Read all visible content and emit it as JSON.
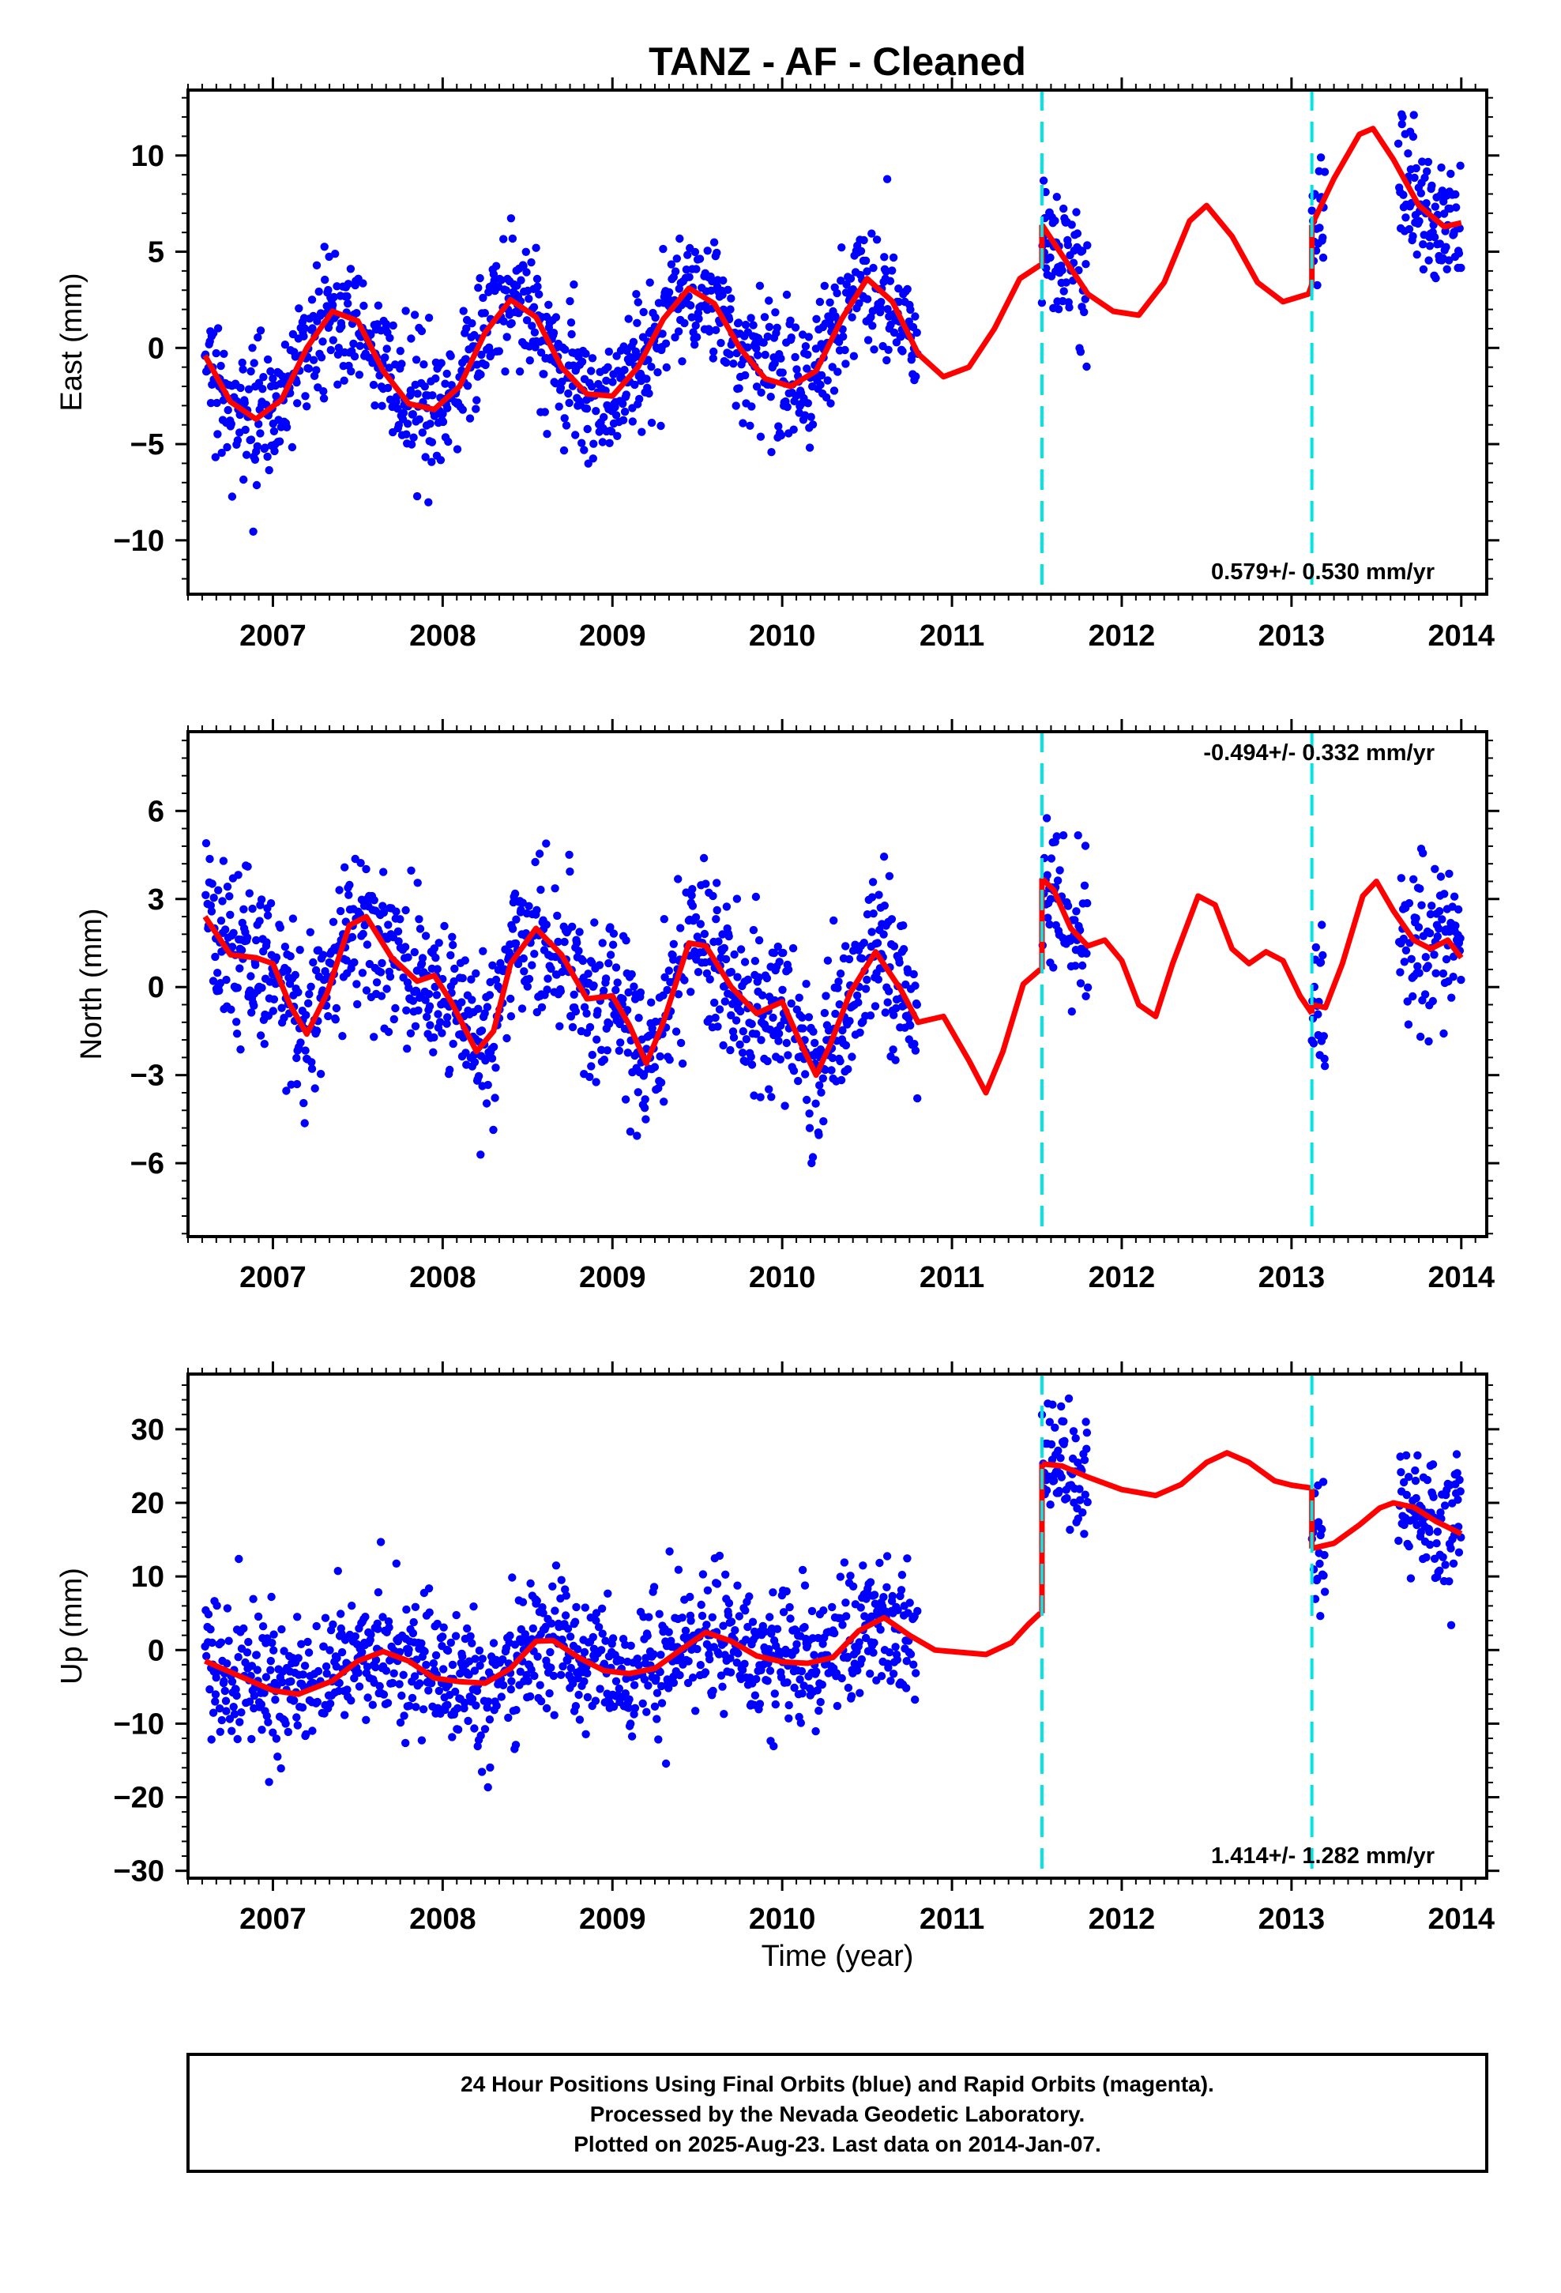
{
  "title": "TANZ  - AF - Cleaned",
  "xlabel": "Time (year)",
  "footer": {
    "line1": "24 Hour Positions Using Final Orbits (blue) and Rapid Orbits (magenta).",
    "line2": "Processed by the Nevada Geodetic Laboratory.",
    "line3": "Plotted on 2025-Aug-23. Last data on 2014-Jan-07."
  },
  "colors": {
    "points": "#0000ff",
    "model": "#ff0000",
    "offsets": "#00e5e5",
    "axes": "#000000"
  },
  "chart_data": [
    {
      "type": "scatter",
      "component": "East",
      "ylabel": "East (mm)",
      "rate": "0.579+/- 0.530 mm/yr",
      "xlim": [
        2006.5,
        2014.15
      ],
      "ylim": [
        -12.8,
        13.4
      ],
      "xticks": [
        "2007",
        "2008",
        "2009",
        "2010",
        "2011",
        "2012",
        "2013",
        "2014"
      ],
      "yticks": [
        "10",
        "5",
        "0",
        "−5",
        "−10"
      ],
      "ytick_values": [
        10,
        5,
        0,
        -5,
        -10
      ],
      "offset_lines": [
        2011.53,
        2013.12
      ],
      "data_ranges": [
        [
          2006.6,
          2010.8
        ],
        [
          2011.53,
          2011.8
        ],
        [
          2013.12,
          2013.2
        ],
        [
          2013.63,
          2014.02
        ]
      ],
      "model": {
        "segments": [
          {
            "x": [
              2006.6,
              2006.75,
              2006.9,
              2007.05,
              2007.2,
              2007.35,
              2007.5,
              2007.65,
              2007.8,
              2007.95,
              2008.1,
              2008.25,
              2008.4,
              2008.55,
              2008.7,
              2008.85,
              2009.0,
              2009.15,
              2009.3,
              2009.45,
              2009.6,
              2009.75,
              2009.9,
              2010.05,
              2010.2,
              2010.35,
              2010.5,
              2010.65,
              2010.8,
              2010.95,
              2011.1,
              2011.25,
              2011.4,
              2011.52
            ],
            "y": [
              -0.4,
              -2.8,
              -3.7,
              -2.7,
              0.0,
              1.9,
              1.4,
              -1.2,
              -2.9,
              -3.2,
              -2.0,
              0.8,
              2.5,
              1.6,
              -1.0,
              -2.4,
              -2.5,
              -1.0,
              1.5,
              3.1,
              2.3,
              0.0,
              -1.6,
              -2.0,
              -1.2,
              1.5,
              3.6,
              2.4,
              -0.3,
              -1.5,
              -1.0,
              1.0,
              3.6,
              4.3
            ]
          },
          {
            "x": [
              2011.53,
              2011.65,
              2011.8,
              2011.95,
              2012.1,
              2012.25,
              2012.4,
              2012.5,
              2012.65,
              2012.8,
              2012.95,
              2013.1,
              2013.12
            ],
            "y": [
              6.4,
              4.8,
              2.8,
              1.9,
              1.7,
              3.4,
              6.6,
              7.4,
              5.8,
              3.4,
              2.4,
              2.8,
              3.3
            ]
          },
          {
            "x": [
              2013.12,
              2013.25,
              2013.4,
              2013.48,
              2013.6,
              2013.75,
              2013.9,
              2014.0
            ],
            "y": [
              6.4,
              8.8,
              11.1,
              11.4,
              9.8,
              7.4,
              6.3,
              6.5
            ]
          }
        ]
      }
    },
    {
      "type": "scatter",
      "component": "North",
      "ylabel": "North (mm)",
      "rate": "-0.494+/- 0.332 mm/yr",
      "xlim": [
        2006.5,
        2014.15
      ],
      "ylim": [
        -8.5,
        8.7
      ],
      "xticks": [
        "2007",
        "2008",
        "2009",
        "2010",
        "2011",
        "2012",
        "2013",
        "2014"
      ],
      "yticks": [
        "6",
        "3",
        "0",
        "−3",
        "−6"
      ],
      "ytick_values": [
        6,
        3,
        0,
        -3,
        -6
      ],
      "offset_lines": [
        2011.53,
        2013.12
      ],
      "data_ranges": [
        [
          2006.6,
          2010.8
        ],
        [
          2011.53,
          2011.8
        ],
        [
          2013.12,
          2013.2
        ],
        [
          2013.63,
          2014.02
        ]
      ],
      "model": {
        "segments": [
          {
            "x": [
              2006.6,
              2006.75,
              2006.9,
              2007.0,
              2007.1,
              2007.2,
              2007.32,
              2007.45,
              2007.55,
              2007.7,
              2007.85,
              2007.95,
              2008.05,
              2008.2,
              2008.3,
              2008.4,
              2008.55,
              2008.7,
              2008.85,
              2009.0,
              2009.1,
              2009.2,
              2009.3,
              2009.45,
              2009.55,
              2009.7,
              2009.85,
              2010.0,
              2010.1,
              2010.2,
              2010.28,
              2010.4,
              2010.55,
              2010.7,
              2010.8,
              2010.95,
              2011.1,
              2011.2,
              2011.3,
              2011.42,
              2011.52
            ],
            "y": [
              2.4,
              1.1,
              1.0,
              0.8,
              -0.6,
              -1.6,
              -0.2,
              2.1,
              2.4,
              1.0,
              0.2,
              0.4,
              -0.5,
              -2.2,
              -1.5,
              0.8,
              2.0,
              1.1,
              -0.4,
              -0.3,
              -1.3,
              -2.6,
              -1.2,
              1.5,
              1.4,
              0.0,
              -0.9,
              -0.5,
              -1.8,
              -3.0,
              -2.0,
              -0.2,
              1.2,
              -0.1,
              -1.2,
              -1.0,
              -2.5,
              -3.6,
              -2.2,
              0.1,
              0.6
            ]
          },
          {
            "x": [
              2011.53,
              2011.6,
              2011.7,
              2011.8,
              2011.9,
              2012.0,
              2012.1,
              2012.2,
              2012.3,
              2012.45,
              2012.55,
              2012.65,
              2012.75,
              2012.85,
              2012.95,
              2013.05,
              2013.12
            ],
            "y": [
              3.7,
              3.3,
              2.0,
              1.4,
              1.6,
              0.9,
              -0.6,
              -1.0,
              0.8,
              3.1,
              2.8,
              1.3,
              0.8,
              1.2,
              0.9,
              -0.3,
              -0.9
            ]
          },
          {
            "x": [
              2013.12,
              2013.2,
              2013.3,
              2013.42,
              2013.5,
              2013.6,
              2013.72,
              2013.82,
              2013.92,
              2014.0
            ],
            "y": [
              -0.6,
              -0.7,
              0.8,
              3.1,
              3.6,
              2.6,
              1.6,
              1.3,
              1.6,
              1.0
            ]
          }
        ]
      }
    },
    {
      "type": "scatter",
      "component": "Up",
      "ylabel": "Up (mm)",
      "rate": "1.414+/- 1.282 mm/yr",
      "xlim": [
        2006.5,
        2014.15
      ],
      "ylim": [
        -31.0,
        37.5
      ],
      "xticks": [
        "2007",
        "2008",
        "2009",
        "2010",
        "2011",
        "2012",
        "2013",
        "2014"
      ],
      "yticks": [
        "30",
        "20",
        "10",
        "0",
        "−10",
        "−20",
        "−30"
      ],
      "ytick_values": [
        30,
        20,
        10,
        0,
        -10,
        -20,
        -30
      ],
      "offset_lines": [
        2011.53,
        2013.12
      ],
      "data_ranges": [
        [
          2006.6,
          2010.8
        ],
        [
          2011.53,
          2011.8
        ],
        [
          2013.12,
          2013.2
        ],
        [
          2013.63,
          2014.02
        ]
      ],
      "model": {
        "segments": [
          {
            "x": [
              2006.6,
              2006.8,
              2007.0,
              2007.15,
              2007.35,
              2007.5,
              2007.65,
              2007.8,
              2007.95,
              2008.1,
              2008.25,
              2008.4,
              2008.55,
              2008.65,
              2008.8,
              2008.95,
              2009.1,
              2009.25,
              2009.4,
              2009.55,
              2009.7,
              2009.85,
              2010.0,
              2010.15,
              2010.3,
              2010.45,
              2010.6,
              2010.75,
              2010.9,
              2011.05,
              2011.2,
              2011.35,
              2011.45,
              2011.52
            ],
            "y": [
              -1.5,
              -3.5,
              -5.5,
              -6.0,
              -4.2,
              -1.5,
              -0.2,
              -1.5,
              -3.8,
              -4.3,
              -4.5,
              -2.5,
              1.2,
              1.3,
              -1.0,
              -2.8,
              -3.2,
              -2.5,
              0.0,
              2.4,
              1.2,
              -0.8,
              -1.6,
              -1.8,
              -1.0,
              2.6,
              4.4,
              2.0,
              0.0,
              -0.3,
              -0.6,
              1.0,
              3.5,
              5.0
            ]
          },
          {
            "x": [
              2011.53,
              2011.65,
              2011.8,
              2012.0,
              2012.2,
              2012.35,
              2012.5,
              2012.62,
              2012.75,
              2012.9,
              2013.0,
              2013.12
            ],
            "y": [
              25.3,
              25.0,
              23.5,
              21.8,
              21.0,
              22.5,
              25.5,
              26.8,
              25.5,
              23.0,
              22.4,
              22.0
            ]
          },
          {
            "x": [
              2013.12,
              2013.25,
              2013.4,
              2013.52,
              2013.6,
              2013.72,
              2013.85,
              2014.0
            ],
            "y": [
              13.8,
              14.5,
              17.0,
              19.3,
              20.0,
              19.4,
              17.5,
              15.8
            ]
          }
        ]
      }
    }
  ]
}
